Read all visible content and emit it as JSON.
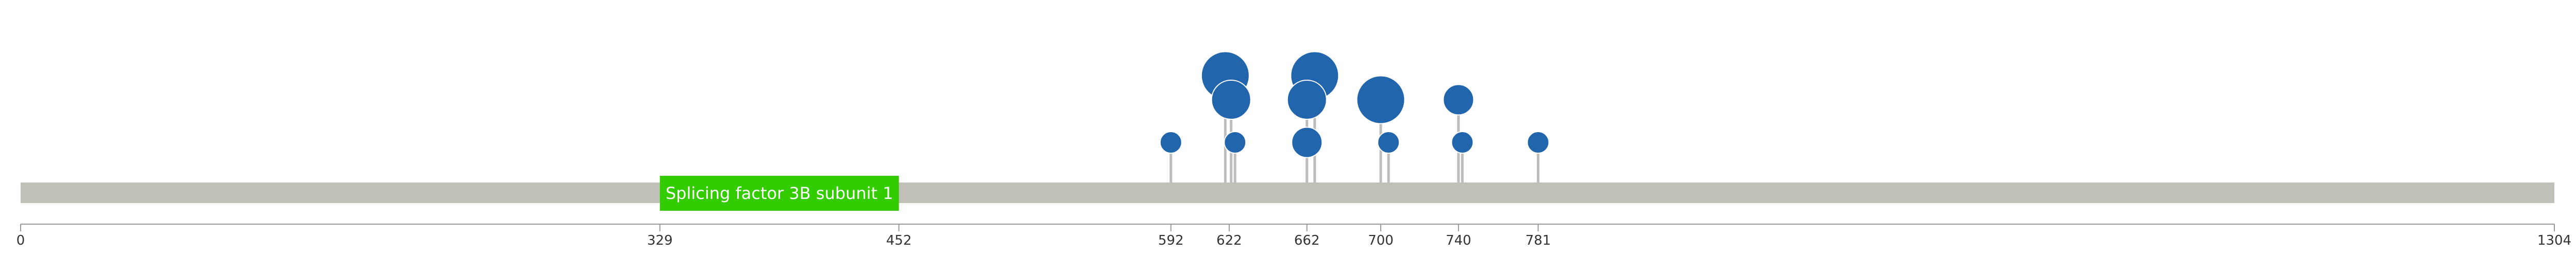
{
  "chart_data": {
    "type": "lollipop",
    "protein_length": 1304,
    "x_range": [
      0,
      1304
    ],
    "axis_ticks": [
      0,
      329,
      452,
      592,
      622,
      662,
      700,
      740,
      781,
      1304
    ],
    "domains": [
      {
        "name": "Splicing factor 3B subunit 1",
        "start": 329,
        "end": 452,
        "color": "#33cc00"
      }
    ],
    "mutations": [
      {
        "position": 592,
        "count": 1
      },
      {
        "position": 620,
        "count": 4
      },
      {
        "position": 623,
        "count": 3
      },
      {
        "position": 625,
        "count": 1
      },
      {
        "position": 662,
        "count": 2
      },
      {
        "position": 662,
        "count": 3
      },
      {
        "position": 666,
        "count": 4
      },
      {
        "position": 700,
        "count": 4
      },
      {
        "position": 704,
        "count": 1
      },
      {
        "position": 740,
        "count": 2
      },
      {
        "position": 742,
        "count": 1
      },
      {
        "position": 781,
        "count": 1
      }
    ],
    "colors": {
      "backbone": "#c0c0b8",
      "axis": "#999999",
      "stem": "#bdbdbd",
      "circle": "#2166ac",
      "domain": "#33cc00"
    }
  }
}
